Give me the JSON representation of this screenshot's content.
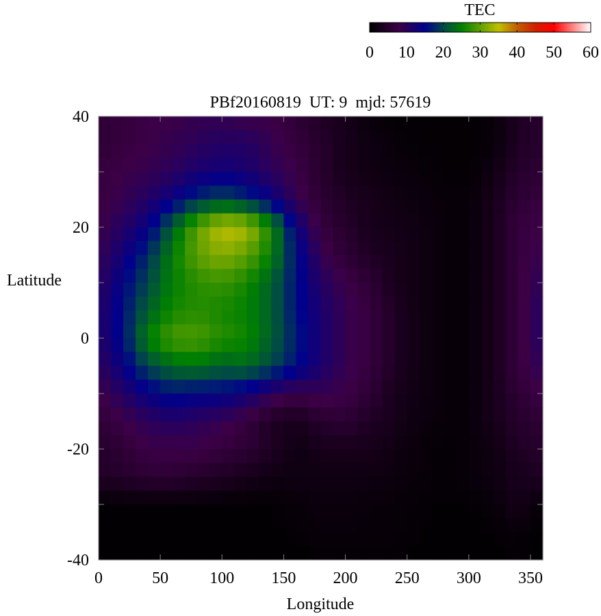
{
  "chart_data": {
    "type": "heatmap",
    "title": "PBf20160819  UT: 9  mjd: 57619",
    "xlabel": "Longitude",
    "ylabel": "Latitude",
    "xlim": [
      0,
      360
    ],
    "ylim": [
      -40,
      40
    ],
    "x_ticks": [
      0,
      50,
      100,
      150,
      200,
      250,
      300,
      350
    ],
    "y_ticks": [
      40,
      20,
      0,
      -20,
      -40
    ],
    "colorbar": {
      "label": "TEC",
      "range": [
        0,
        60
      ],
      "ticks": [
        0,
        10,
        20,
        30,
        40,
        50,
        60
      ],
      "palette": [
        {
          "v": 0,
          "color": "#000000"
        },
        {
          "v": 8,
          "color": "#3c0046"
        },
        {
          "v": 15,
          "color": "#00008c"
        },
        {
          "v": 20,
          "color": "#004848"
        },
        {
          "v": 25,
          "color": "#008000"
        },
        {
          "v": 30,
          "color": "#60a000"
        },
        {
          "v": 35,
          "color": "#c0c000"
        },
        {
          "v": 40,
          "color": "#c06000"
        },
        {
          "v": 45,
          "color": "#d02000"
        },
        {
          "v": 50,
          "color": "#ff0000"
        },
        {
          "v": 60,
          "color": "#ffffff"
        }
      ]
    },
    "grid": {
      "lon": [
        0,
        20,
        40,
        60,
        80,
        100,
        120,
        140,
        160,
        180,
        200,
        220,
        240,
        260,
        280,
        300,
        320,
        340,
        360
      ],
      "lat": [
        40,
        35,
        30,
        25,
        20,
        15,
        10,
        5,
        0,
        -5,
        -10,
        -15,
        -20,
        -25,
        -30,
        -35,
        -40
      ],
      "tec": [
        [
          6,
          7,
          8,
          8,
          9,
          9,
          8,
          8,
          6,
          4,
          3,
          1,
          0.5,
          0.5,
          0.5,
          0.5,
          1,
          4,
          5
        ],
        [
          6,
          7,
          8,
          9,
          10,
          11,
          11,
          9,
          7,
          5,
          3,
          2,
          1,
          0.5,
          0.5,
          0.5,
          1,
          4,
          5
        ],
        [
          7,
          8,
          9,
          10,
          12,
          13,
          12,
          10,
          8,
          5,
          3,
          2,
          1.5,
          1,
          0.5,
          0.5,
          2,
          5,
          6
        ],
        [
          7,
          9,
          11,
          14,
          18,
          20,
          18,
          14,
          9,
          6,
          4,
          3,
          2,
          1.5,
          1,
          1,
          3,
          6,
          7
        ],
        [
          8,
          11,
          14,
          22,
          30,
          35,
          34,
          26,
          14,
          7,
          5,
          3,
          2.5,
          2,
          1,
          1,
          3,
          7,
          8
        ],
        [
          9,
          13,
          18,
          25,
          30,
          32,
          30,
          25,
          16,
          9,
          6,
          4,
          3,
          2,
          1,
          1,
          3,
          7,
          9
        ],
        [
          10,
          15,
          20,
          25,
          27,
          28,
          26,
          22,
          16,
          11,
          8,
          6,
          3,
          2,
          1,
          1,
          3,
          7,
          10
        ],
        [
          11,
          16,
          22,
          26,
          27,
          26,
          25,
          22,
          16,
          12,
          9,
          7,
          4,
          2,
          1,
          1,
          3,
          7,
          11
        ],
        [
          11,
          16,
          25,
          29,
          29,
          27,
          26,
          22,
          17,
          12,
          9,
          7,
          4,
          2,
          1,
          1,
          3,
          7,
          11
        ],
        [
          10,
          14,
          20,
          23,
          24,
          22,
          23,
          20,
          16,
          12,
          9,
          7,
          4,
          2,
          1,
          1,
          3,
          7,
          10
        ],
        [
          8,
          11,
          14,
          16,
          15,
          15,
          13,
          10,
          8,
          9,
          8,
          6,
          3,
          2,
          1,
          1,
          3,
          6,
          8
        ],
        [
          6,
          8,
          10,
          11,
          10,
          9,
          7,
          4,
          3,
          5,
          6,
          4,
          3,
          1.5,
          1,
          1,
          3,
          5,
          6
        ],
        [
          5,
          6,
          8,
          8,
          8,
          7,
          6,
          4,
          2,
          3,
          3,
          3,
          2,
          1,
          0.5,
          1,
          2,
          4,
          5
        ],
        [
          4,
          5,
          6,
          6,
          5,
          4,
          3,
          2,
          2,
          2,
          2,
          2,
          1.5,
          1,
          0.5,
          1,
          2,
          3,
          4
        ],
        [
          0.5,
          0.5,
          0.5,
          0.5,
          0.5,
          0.5,
          0.5,
          0.5,
          1,
          1.5,
          1.5,
          1,
          1,
          0.5,
          0.5,
          0.5,
          1,
          3,
          0.5
        ],
        [
          0.3,
          0.3,
          0.3,
          0.3,
          0.3,
          0.3,
          0.3,
          0.3,
          0.5,
          1,
          1,
          1,
          0.8,
          0.5,
          0.3,
          0.3,
          0.5,
          1,
          0.3
        ],
        [
          0.2,
          0.2,
          0.2,
          0.2,
          0.2,
          0.2,
          0.2,
          0.2,
          0.3,
          0.5,
          0.5,
          0.5,
          0.5,
          0.3,
          0.2,
          0.2,
          0.3,
          0.5,
          0.2
        ]
      ]
    }
  }
}
